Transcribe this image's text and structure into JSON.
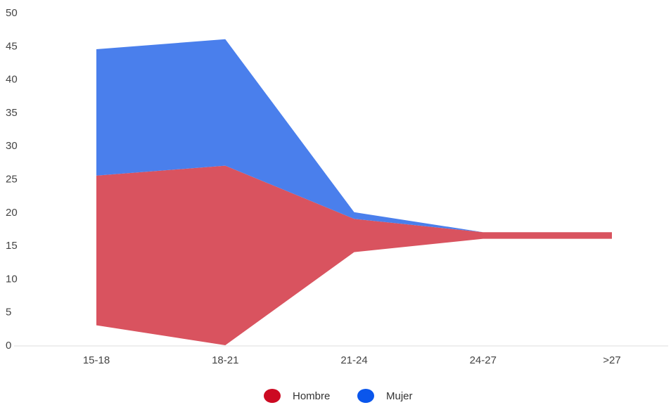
{
  "chart_data": {
    "type": "area",
    "stacked": true,
    "categories": [
      "15-18",
      "18-21",
      "21-24",
      "24-27",
      ">27"
    ],
    "y_ticks": [
      0,
      5,
      10,
      15,
      20,
      25,
      30,
      35,
      40,
      45,
      50
    ],
    "ylim": [
      0,
      50
    ],
    "grid": false,
    "legend_position": "bottom",
    "series": [
      {
        "name": "Hombre",
        "color": "#d9535f",
        "legend_color": "#cc0a22",
        "lower": [
          3,
          0,
          14,
          16,
          16
        ],
        "upper": [
          25.5,
          27,
          19,
          17,
          17
        ]
      },
      {
        "name": "Mujer",
        "color": "#4a7fec",
        "legend_color": "#0a56ec",
        "lower": [
          25.5,
          27,
          19,
          17,
          17
        ],
        "upper": [
          44.5,
          46,
          20,
          17,
          17
        ]
      }
    ]
  }
}
